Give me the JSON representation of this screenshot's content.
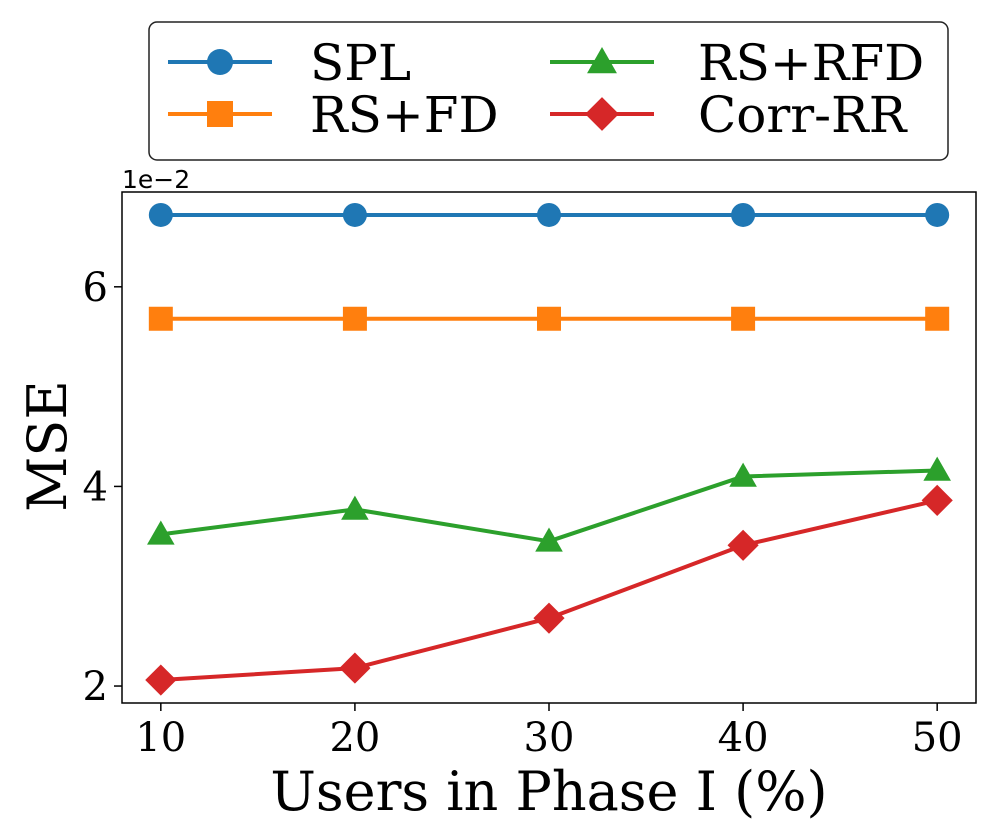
{
  "chart_data": {
    "type": "line",
    "xlabel": "Users in Phase I (%)",
    "ylabel": "MSE",
    "offset_label": "1e−2",
    "x": [
      10,
      20,
      30,
      40,
      50
    ],
    "xticks": [
      "10",
      "20",
      "30",
      "40",
      "50"
    ],
    "yticks": [
      "2",
      "4",
      "6"
    ],
    "ytick_values": [
      2,
      4,
      6
    ],
    "xlim": [
      8,
      52
    ],
    "ylim": [
      1.83,
      6.95
    ],
    "series": [
      {
        "name": "SPL",
        "color": "#1f77b4",
        "marker": "circle",
        "values": [
          6.72,
          6.72,
          6.72,
          6.72,
          6.72
        ]
      },
      {
        "name": "RS+FD",
        "color": "#ff7f0e",
        "marker": "square",
        "values": [
          5.68,
          5.68,
          5.68,
          5.68,
          5.68
        ]
      },
      {
        "name": "RS+RFD",
        "color": "#2ca02c",
        "marker": "triangle",
        "values": [
          3.52,
          3.77,
          3.45,
          4.1,
          4.16
        ]
      },
      {
        "name": "Corr-RR",
        "color": "#d62728",
        "marker": "diamond",
        "values": [
          2.06,
          2.18,
          2.68,
          3.41,
          3.86
        ]
      }
    ],
    "legend_position": "top, above plot, 2 columns"
  }
}
